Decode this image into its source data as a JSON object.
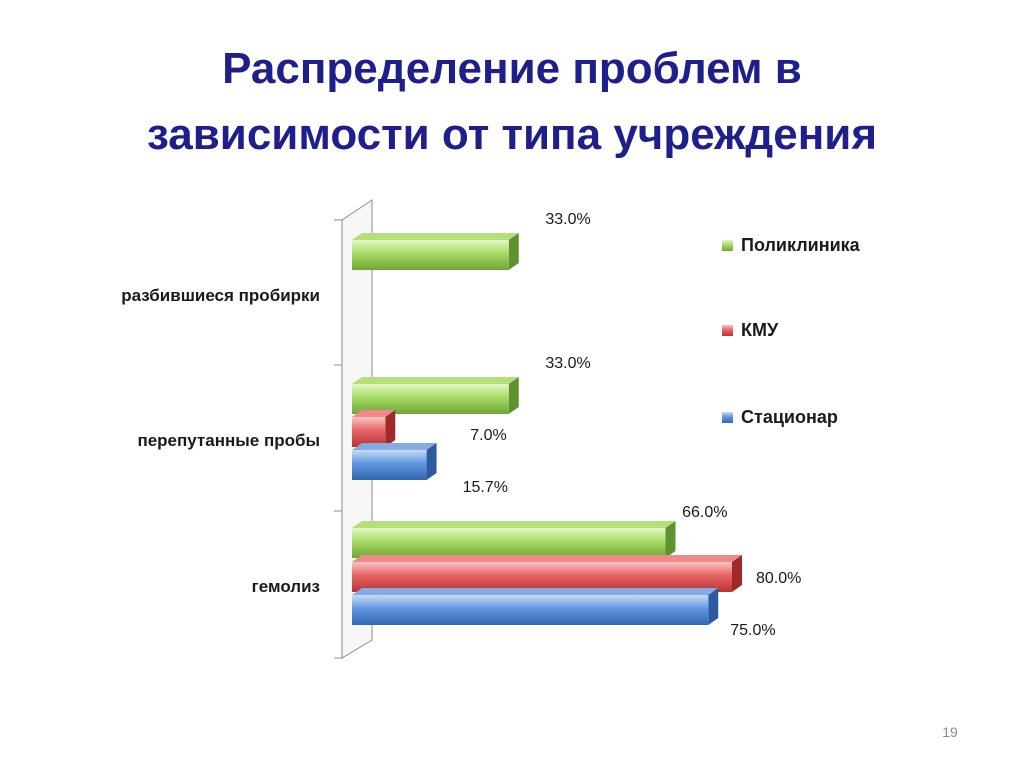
{
  "title": {
    "line1": "Распределение проблем в",
    "line2": "зависимости от типа учреждения"
  },
  "page_number": "19",
  "colors": {
    "title": "#1f1f8c",
    "series": [
      "#92d050",
      "#e05555",
      "#4f8fdf"
    ]
  },
  "chart_data": {
    "type": "bar",
    "orientation": "horizontal",
    "style": "3d",
    "categories": [
      "разбившиеся пробирки",
      "перепутанные пробы",
      "гемолиз"
    ],
    "series": [
      {
        "name": "Поликлиника",
        "values": [
          33.0,
          33.0,
          66.0
        ]
      },
      {
        "name": "КМУ",
        "values": [
          null,
          7.0,
          80.0
        ]
      },
      {
        "name": "Стационар",
        "values": [
          null,
          15.7,
          75.0
        ]
      }
    ],
    "data_labels": [
      [
        "33.0%",
        "33.0%",
        "66.0%"
      ],
      [
        "",
        "7.0%",
        "80.0%"
      ],
      [
        "",
        "15.7%",
        "75.0%"
      ]
    ],
    "xlim": [
      0,
      85
    ],
    "value_axis_visible": false,
    "grid": false,
    "legend_position": "right"
  }
}
